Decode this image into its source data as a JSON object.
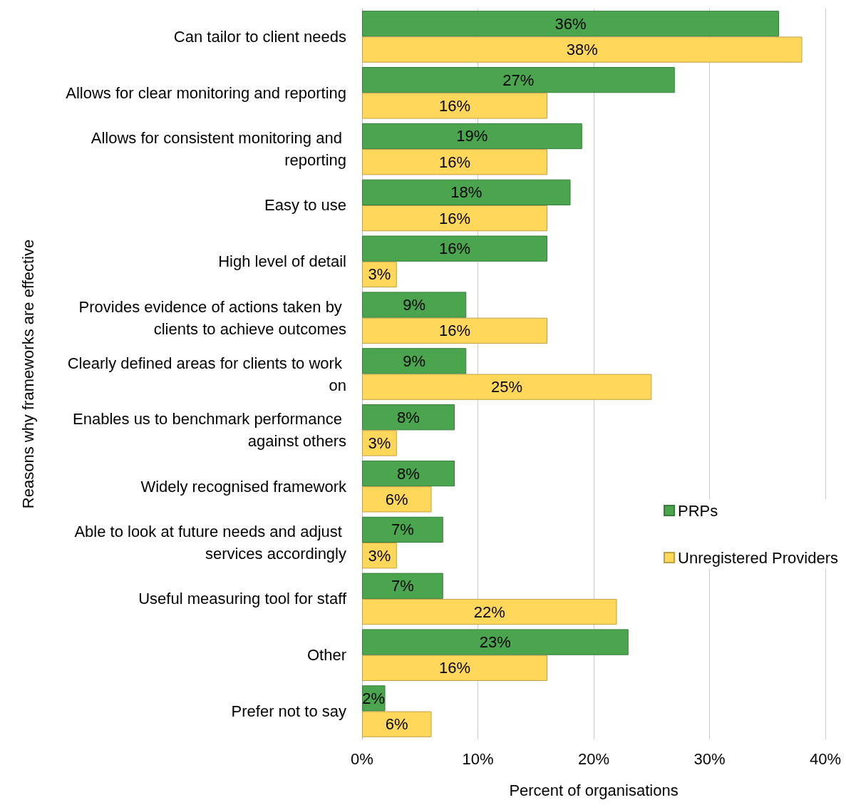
{
  "chart_data": {
    "type": "bar",
    "orientation": "horizontal",
    "categories": [
      "Can tailor to client needs",
      "Allows for clear monitoring and reporting",
      "Allows for consistent monitoring and reporting",
      "Easy to use",
      "High level of detail",
      "Provides evidence of actions taken by clients to achieve outcomes",
      "Clearly defined areas for clients to work on",
      "Enables us to benchmark performance against others",
      "Widely recognised framework",
      "Able to look at future needs and adjust services accordingly",
      "Useful measuring tool for staff",
      "Other",
      "Prefer not to say"
    ],
    "series": [
      {
        "name": "PRPs",
        "color": "#4aa54e",
        "values": [
          36,
          27,
          19,
          18,
          16,
          9,
          9,
          8,
          8,
          7,
          7,
          23,
          2
        ],
        "value_labels": [
          "36%",
          "27%",
          "19%",
          "18%",
          "16%",
          "9%",
          "9%",
          "8%",
          "8%",
          "7%",
          "7%",
          "23%",
          "2%"
        ]
      },
      {
        "name": "Unregistered Providers",
        "color": "#ffd75b",
        "values": [
          38,
          16,
          16,
          16,
          3,
          16,
          25,
          3,
          6,
          3,
          22,
          16,
          6
        ],
        "value_labels": [
          "38%",
          "16%",
          "16%",
          "16%",
          "3%",
          "16%",
          "25%",
          "3%",
          "6%",
          "3%",
          "22%",
          "16%",
          "6%"
        ]
      }
    ],
    "xlabel": "Percent of organisations",
    "ylabel": "Reasons why frameworks are effective",
    "xlim": [
      0,
      40
    ],
    "xticks": [
      {
        "value": 0,
        "label": "0%"
      },
      {
        "value": 10,
        "label": "10%"
      },
      {
        "value": 20,
        "label": "20%"
      },
      {
        "value": 30,
        "label": "30%"
      },
      {
        "value": 40,
        "label": "40%"
      }
    ],
    "grid": "x",
    "legend": "right"
  }
}
